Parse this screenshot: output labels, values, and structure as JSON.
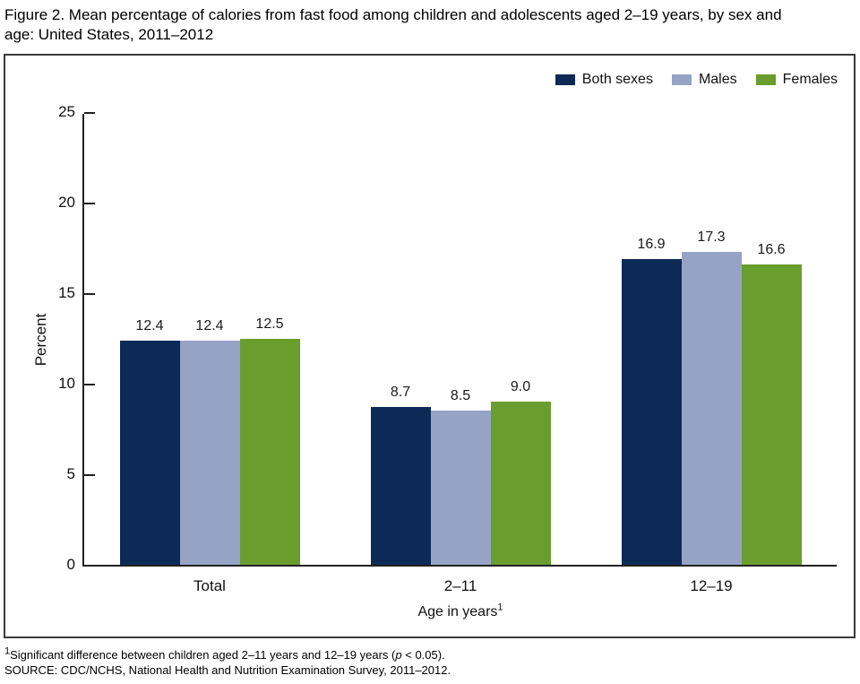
{
  "title": {
    "line1": "Figure 2. Mean percentage of calories from fast food among children and adolescents aged 2–19 years, by sex and",
    "line2": "age: United States, 2011–2012"
  },
  "chart_data": {
    "type": "bar",
    "categories": [
      "Total",
      "2–11",
      "12–19"
    ],
    "series": [
      {
        "name": "Both sexes",
        "color": "#0c2a55",
        "values": [
          12.4,
          8.7,
          16.9
        ]
      },
      {
        "name": "Males",
        "color": "#95a3c5",
        "values": [
          12.4,
          8.5,
          17.3
        ]
      },
      {
        "name": "Females",
        "color": "#699d2e",
        "values": [
          12.5,
          9.0,
          16.6
        ]
      }
    ],
    "title": "Mean percentage of calories from fast food among children and adolescents aged 2–19 years, by sex and age: United States, 2011–2012",
    "xlabel": "Age in years",
    "xlabel_sup": "1",
    "ylabel": "Percent",
    "ylim": [
      0,
      25
    ],
    "yticks": [
      0,
      5,
      10,
      15,
      20,
      25
    ],
    "grid": false,
    "legend_position": "top-right",
    "data_labels": true
  },
  "footnotes": {
    "note1_sup": "1",
    "note1_pre": "Significant difference between children aged 2–11 years and 12–19 years (",
    "note1_italic": "p",
    "note1_post": " < 0.05).",
    "source": "SOURCE: CDC/NCHS, National Health and Nutrition Examination Survey, 2011–2012."
  }
}
